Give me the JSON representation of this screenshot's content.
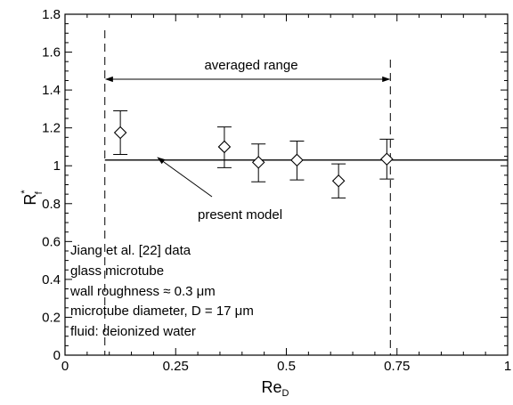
{
  "chart_data": {
    "type": "scatter",
    "xlabel_main": "Re",
    "xlabel_sub": "D",
    "ylabel_main": "R",
    "ylabel_sup": "*",
    "ylabel_sub": "f",
    "xlim": [
      0,
      1
    ],
    "ylim": [
      0,
      1.8
    ],
    "xticks": [
      0,
      0.25,
      0.5,
      0.75,
      1
    ],
    "xtick_labels": [
      "0",
      "0.25",
      "0.5",
      "0.75",
      "1"
    ],
    "yticks": [
      0,
      0.2,
      0.4,
      0.6,
      0.8,
      1,
      1.2,
      1.4,
      1.6,
      1.8
    ],
    "ytick_labels": [
      "0",
      "0.2",
      "0.4",
      "0.6",
      "0.8",
      "1",
      "1.2",
      "1.4",
      "1.6",
      "1.8"
    ],
    "grid": false,
    "series": [
      {
        "marker": "diamond",
        "x": [
          0.125,
          0.36,
          0.437,
          0.524,
          0.618,
          0.727
        ],
        "y": [
          1.175,
          1.1,
          1.018,
          1.03,
          0.92,
          1.035
        ],
        "err_low": [
          1.06,
          0.99,
          0.915,
          0.925,
          0.83,
          0.93
        ],
        "err_high": [
          1.29,
          1.205,
          1.115,
          1.13,
          1.01,
          1.14
        ]
      }
    ],
    "model_line": {
      "y": 1.03,
      "x_start": 0.09,
      "x_end": 1.0
    },
    "range_lines": {
      "x_start": 0.09,
      "x_end": 0.735
    },
    "annotations": {
      "averaged_range": "averaged range",
      "present_model": "present model",
      "info_lines": [
        "Jiang et al. [22] data",
        "glass microtube",
        "wall roughness ≈ 0.3 μm",
        "microtube diameter, D = 17 μm",
        "fluid: deionized water"
      ]
    }
  }
}
